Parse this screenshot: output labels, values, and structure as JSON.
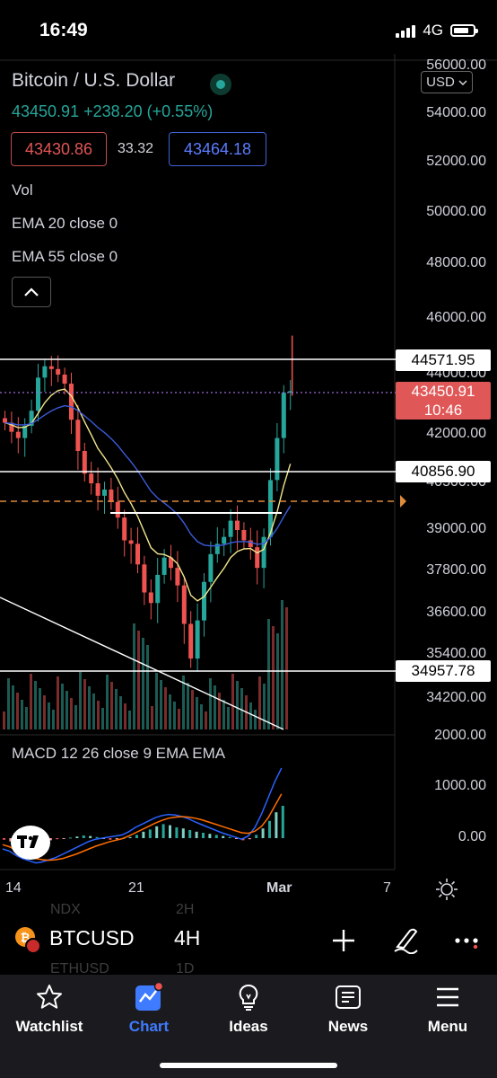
{
  "status": {
    "time": "16:49",
    "network": "4G"
  },
  "header": {
    "title": "Bitcoin / U.S. Dollar",
    "price": "43450.91",
    "change": "+238.20 (+0.55%)",
    "bid": "43430.86",
    "spread": "33.32",
    "ask": "43464.18",
    "currency": "USD"
  },
  "indicators": {
    "vol": "Vol",
    "ema20": "EMA 20 close 0",
    "ema55": "EMA 55 close 0",
    "macd": "MACD 12 26 close 9 EMA EMA"
  },
  "price_axis": [
    "56000.00",
    "54000.00",
    "52000.00",
    "50000.00",
    "48000.00",
    "46000.00",
    "44000.00",
    "42000.00",
    "40500.00",
    "39000.00",
    "37800.00",
    "36600.00",
    "35400.00",
    "34200.00"
  ],
  "macd_axis": [
    "2000.00",
    "1000.00",
    "0.00"
  ],
  "level_tags": [
    "44571.95",
    "40856.90",
    "34957.78"
  ],
  "current_tag": {
    "price": "43450.91",
    "countdown": "10:46"
  },
  "date_axis": [
    "14",
    "21",
    "Mar",
    "7"
  ],
  "toolbar": {
    "symbol": "BTCUSD",
    "interval": "4H",
    "ghost_symbols": [
      "NDX",
      "ETHUSD"
    ],
    "ghost_intervals": [
      "2H",
      "1D"
    ]
  },
  "tabs": [
    {
      "label": "Watchlist",
      "icon": "star-icon"
    },
    {
      "label": "Chart",
      "icon": "chart-icon"
    },
    {
      "label": "Ideas",
      "icon": "lightbulb-icon"
    },
    {
      "label": "News",
      "icon": "newspaper-icon"
    },
    {
      "label": "Menu",
      "icon": "hamburger-icon"
    }
  ],
  "colors": {
    "up": "#26a69a",
    "down": "#ef5350",
    "ema20": "#f0e68c",
    "ema55": "#3b5bdb",
    "accent": "#3f7bff"
  },
  "chart_data": {
    "type": "candlestick",
    "symbol": "BTCUSD",
    "interval": "4H",
    "horizontal_levels": [
      44571.95,
      40856.9,
      34957.78
    ],
    "current_price": 43450.91,
    "moving_averages": [
      "EMA 20",
      "EMA 55"
    ],
    "close_path": [
      [
        0,
        42400
      ],
      [
        1,
        42100
      ],
      [
        2,
        41900
      ],
      [
        3,
        42300
      ],
      [
        4,
        42800
      ],
      [
        5,
        43900
      ],
      [
        6,
        44300
      ],
      [
        7,
        44200
      ],
      [
        8,
        44000
      ],
      [
        9,
        43700
      ],
      [
        10,
        42500
      ],
      [
        11,
        41500
      ],
      [
        12,
        40800
      ],
      [
        13,
        40500
      ],
      [
        14,
        40100
      ],
      [
        15,
        40300
      ],
      [
        16,
        39900
      ],
      [
        17,
        39400
      ],
      [
        18,
        38700
      ],
      [
        19,
        38600
      ],
      [
        20,
        38000
      ],
      [
        21,
        37200
      ],
      [
        22,
        36900
      ],
      [
        23,
        37700
      ],
      [
        24,
        38200
      ],
      [
        25,
        37900
      ],
      [
        26,
        37400
      ],
      [
        27,
        36300
      ],
      [
        28,
        35300
      ],
      [
        29,
        36400
      ],
      [
        30,
        37500
      ],
      [
        31,
        38300
      ],
      [
        32,
        38600
      ],
      [
        33,
        38800
      ],
      [
        34,
        39300
      ],
      [
        35,
        39000
      ],
      [
        36,
        38700
      ],
      [
        37,
        38500
      ],
      [
        38,
        37900
      ],
      [
        39,
        38800
      ],
      [
        40,
        40600
      ],
      [
        41,
        41900
      ],
      [
        42,
        43400
      ],
      [
        43,
        43450
      ]
    ],
    "macd": {
      "histogram": [
        -30,
        -60,
        -90,
        -120,
        -140,
        -120,
        -80,
        -40,
        -20,
        -10,
        10,
        30,
        50,
        40,
        20,
        -10,
        -30,
        -20,
        0,
        20,
        60,
        120,
        160,
        220,
        260,
        240,
        200,
        180,
        150,
        120,
        100,
        80,
        60,
        40,
        20,
        -10,
        -40,
        -20,
        60,
        180,
        320,
        480,
        600
      ],
      "macd_line": [
        -200,
        -240,
        -320,
        -380,
        -420,
        -460,
        -440,
        -400,
        -360,
        -300,
        -240,
        -180,
        -120,
        -60,
        -20,
        0,
        20,
        40,
        60,
        120,
        200,
        260,
        320,
        380,
        420,
        440,
        430,
        400,
        360,
        300,
        250,
        200,
        150,
        100,
        60,
        20,
        -20,
        40,
        200,
        450,
        750,
        1050,
        1300
      ],
      "signal_line": [
        -120,
        -160,
        -220,
        -280,
        -330,
        -380,
        -400,
        -410,
        -400,
        -380,
        -340,
        -300,
        -250,
        -200,
        -150,
        -110,
        -70,
        -40,
        -10,
        40,
        100,
        160,
        220,
        280,
        330,
        370,
        390,
        400,
        390,
        370,
        340,
        300,
        260,
        220,
        180,
        140,
        100,
        90,
        130,
        220,
        380,
        600,
        820
      ]
    }
  }
}
